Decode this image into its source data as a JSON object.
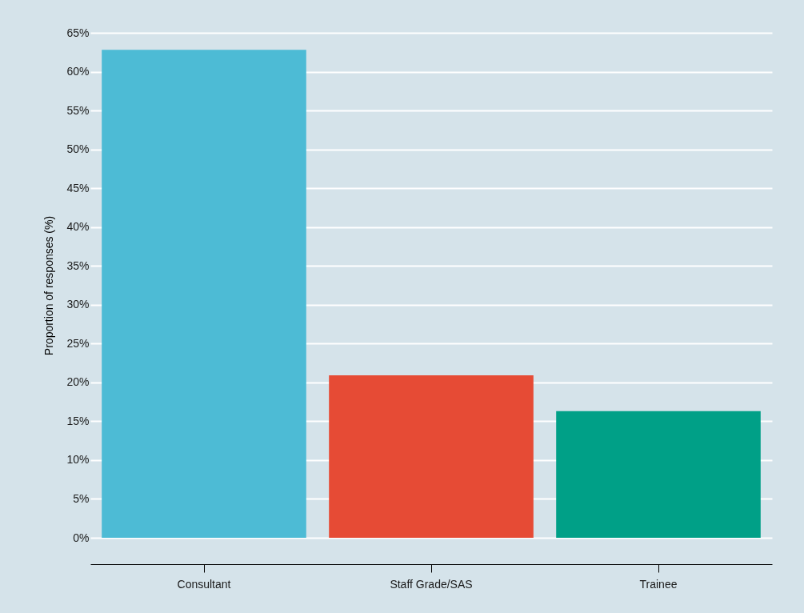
{
  "chart_data": {
    "type": "bar",
    "ylabel": "Proportion of responses (%)",
    "categories": [
      "Consultant",
      "Staff Grade/SAS",
      "Trainee"
    ],
    "values": [
      62.8,
      20.9,
      16.3
    ],
    "colors": [
      "#4dbbd5",
      "#e64b35",
      "#00a087"
    ],
    "ylim": [
      0,
      65
    ],
    "yticks": [
      {
        "value": 0,
        "label": "0%"
      },
      {
        "value": 5,
        "label": "5%"
      },
      {
        "value": 10,
        "label": "10%"
      },
      {
        "value": 15,
        "label": "15%"
      },
      {
        "value": 20,
        "label": "20%"
      },
      {
        "value": 25,
        "label": "25%"
      },
      {
        "value": 30,
        "label": "30%"
      },
      {
        "value": 35,
        "label": "35%"
      },
      {
        "value": 40,
        "label": "40%"
      },
      {
        "value": 45,
        "label": "45%"
      },
      {
        "value": 50,
        "label": "50%"
      },
      {
        "value": 55,
        "label": "55%"
      },
      {
        "value": 60,
        "label": "60%"
      },
      {
        "value": 65,
        "label": "65%"
      }
    ],
    "grid": "y"
  }
}
